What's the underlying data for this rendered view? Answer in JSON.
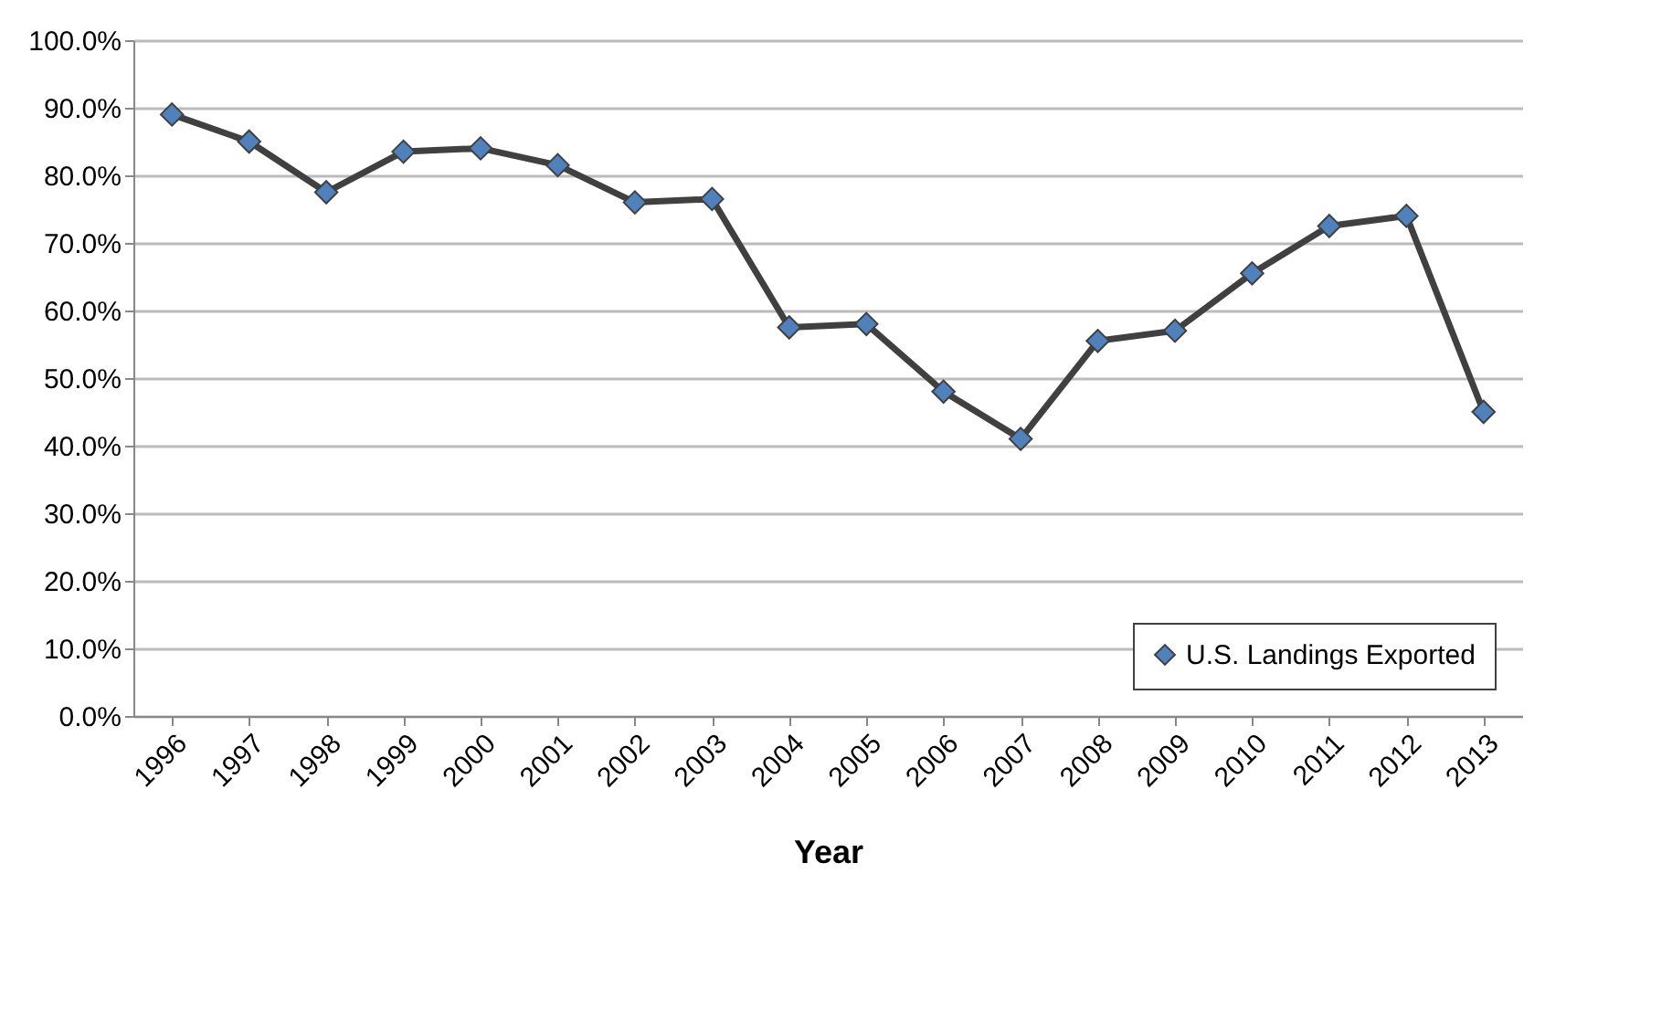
{
  "chart_data": {
    "type": "line",
    "xlabel": "Year",
    "categories": [
      "1996",
      "1997",
      "1998",
      "1999",
      "2000",
      "2001",
      "2002",
      "2003",
      "2004",
      "2005",
      "2006",
      "2007",
      "2008",
      "2009",
      "2010",
      "2011",
      "2012",
      "2013"
    ],
    "series": [
      {
        "name": "U.S. Landings Exported",
        "color": "#4f81bd",
        "values": [
          89,
          85,
          77.5,
          83.5,
          84,
          81.5,
          76,
          76.5,
          57.5,
          58,
          48,
          41,
          55.5,
          57,
          65.5,
          72.5,
          74,
          45
        ]
      }
    ],
    "ylim": [
      0,
      100
    ],
    "yticks": [
      {
        "value": 0,
        "label": "0.0%"
      },
      {
        "value": 10,
        "label": "10.0%"
      },
      {
        "value": 20,
        "label": "20.0%"
      },
      {
        "value": 30,
        "label": "30.0%"
      },
      {
        "value": 40,
        "label": "40.0%"
      },
      {
        "value": 50,
        "label": "50.0%"
      },
      {
        "value": 60,
        "label": "60.0%"
      },
      {
        "value": 70,
        "label": "70.0%"
      },
      {
        "value": 80,
        "label": "80.0%"
      },
      {
        "value": 90,
        "label": "90.0%"
      },
      {
        "value": 100,
        "label": "100.0%"
      }
    ],
    "grid": "y",
    "legend": "bottom right",
    "marker": "diamond",
    "line_style": "solid"
  }
}
